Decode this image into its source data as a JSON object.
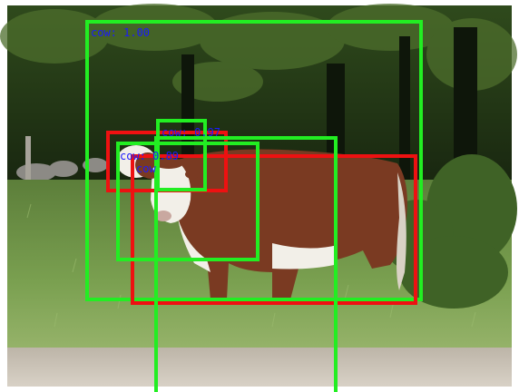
{
  "image": {
    "subject": "hereford-cow-in-grass-field",
    "colors": {
      "green_box": "#22ee22",
      "red_box": "#ee1111",
      "label": "#1a1aff",
      "forest": "#17240f",
      "grass": "#6f9348",
      "cow_brown": "#7a3a22",
      "cow_white": "#f2efe8",
      "path": "#cfc7bb"
    }
  },
  "labels": {
    "top": "cow: 1.00",
    "middle_1": "cow: 0.97",
    "middle_2": "cow: 0.89",
    "middle_3": "cow"
  }
}
